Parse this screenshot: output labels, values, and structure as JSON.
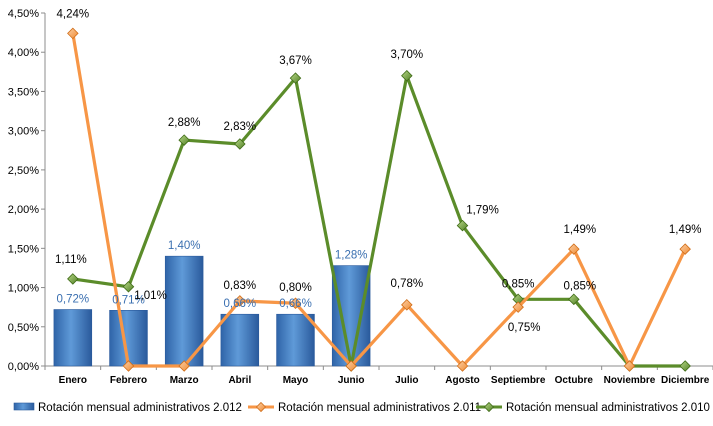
{
  "chart_data": {
    "type": "bar",
    "categories": [
      "Enero",
      "Febrero",
      "Marzo",
      "Abril",
      "Mayo",
      "Junio",
      "Julio",
      "Agosto",
      "Septiembre",
      "Octubre",
      "Noviembre",
      "Diciembre"
    ],
    "y_ticks": [
      "0,00%",
      "0,50%",
      "1,00%",
      "1,50%",
      "2,00%",
      "2,50%",
      "3,00%",
      "3,50%",
      "4,00%",
      "4,50%"
    ],
    "ylim": [
      0,
      4.5
    ],
    "grid": false,
    "legend_position": "bottom",
    "series": [
      {
        "name": "Rotación mensual administrativos 2.012",
        "kind": "bar",
        "color": "#3f7ec6",
        "values": [
          0.72,
          0.71,
          1.4,
          0.66,
          0.66,
          1.28,
          null,
          null,
          null,
          null,
          null,
          null
        ],
        "labels": [
          "0,72%",
          "0,71%",
          "1,40%",
          "0,66%",
          "0,66%",
          "1,28%",
          "",
          "",
          "",
          "",
          "",
          ""
        ]
      },
      {
        "name": "Rotación mensual administrativos 2.011",
        "kind": "line",
        "color": "#f79646",
        "values": [
          4.24,
          0,
          0,
          0.83,
          0.8,
          0,
          0.78,
          0,
          0.75,
          1.49,
          0,
          1.49
        ],
        "labels": [
          "4,24%",
          "",
          "",
          "0,83%",
          "0,80%",
          "",
          "0,78%",
          "",
          "0,75%",
          "1,49%",
          "",
          "1,49%"
        ]
      },
      {
        "name": "Rotación mensual administrativos 2.010",
        "kind": "line",
        "color": "#5b8c2a",
        "values": [
          1.11,
          1.01,
          2.88,
          2.83,
          3.67,
          0,
          3.7,
          1.79,
          0.85,
          0.85,
          0,
          0
        ],
        "labels": [
          "1,11%",
          "1,01%",
          "2,88%",
          "2,83%",
          "3,67%",
          "",
          "3,70%",
          "1,79%",
          "0,85%",
          "0,85%",
          "",
          ""
        ]
      }
    ]
  }
}
